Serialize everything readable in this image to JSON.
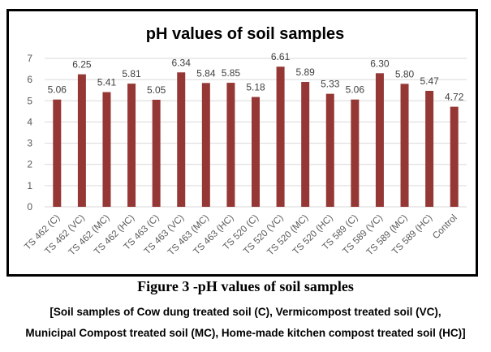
{
  "chart_data": {
    "type": "bar",
    "title": "pH values of soil samples",
    "categories": [
      "TS 462 (C)",
      "TS 462 (VC)",
      "TS 462 (MC)",
      "TS 462 (HC)",
      "TS 463 (C)",
      "TS 463 (VC)",
      "TS 463 (MC)",
      "TS 463 (HC)",
      "TS 520 (C)",
      "TS 520 (VC)",
      "TS 520 (MC)",
      "TS 520 (HC)",
      "TS 589 (C)",
      "TS 589 (VC)",
      "TS 589 (MC)",
      "TS 589 (HC)",
      "Control"
    ],
    "values": [
      5.06,
      6.25,
      5.41,
      5.81,
      5.05,
      6.34,
      5.84,
      5.85,
      5.18,
      6.61,
      5.89,
      5.33,
      5.06,
      6.3,
      5.8,
      5.47,
      4.72
    ],
    "data_labels": [
      "5.06",
      "6.25",
      "5.41",
      "5.81",
      "5.05",
      "6.34",
      "5.84",
      "5.85",
      "5.18",
      "6.61",
      "5.89",
      "5.33",
      "5.06",
      "6.30",
      "5.80",
      "5.47",
      "4.72"
    ],
    "xlabel": "",
    "ylabel": "",
    "ylim": [
      0,
      7
    ],
    "yticks": [
      "0",
      "1",
      "2",
      "3",
      "4",
      "5",
      "6",
      "7"
    ],
    "grid": true,
    "bar_color": "#953735"
  },
  "caption": {
    "figure": "Figure 3 -pH values of soil samples",
    "line1": "[Soil samples of Cow dung treated soil (C), Vermicompost treated soil (VC),",
    "line2": "Municipal Compost treated soil (MC), Home-made kitchen compost treated soil (HC)]"
  }
}
